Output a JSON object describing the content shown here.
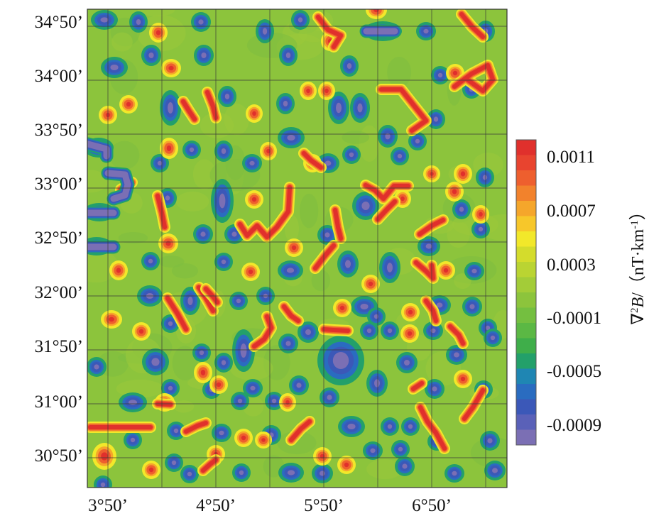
{
  "chart_data": {
    "type": "heatmap",
    "title": "",
    "xlabel": "",
    "ylabel": "",
    "x_ticks": [
      "3°50’",
      "4°50’",
      "5°50’",
      "6°50’"
    ],
    "y_ticks": [
      "34°50’",
      "34°00’",
      "33°50’",
      "33°00’",
      "32°50’",
      "32°00’",
      "31°50’",
      "31°00’",
      "30°50’"
    ],
    "grid": true,
    "colorbar": {
      "label_parts": [
        "∇",
        "2",
        "B",
        "/（nT·km",
        "-1",
        "）"
      ],
      "ticks": [
        "0.0011",
        "0.0007",
        "0.0003",
        "-0.0001",
        "-0.0005",
        "-0.0009"
      ],
      "range": [
        -0.0011,
        0.0013
      ],
      "placement": "right"
    },
    "background_value": -0.0001,
    "anomalies_approx": [
      {
        "lon": 3.95,
        "lat": 34.82,
        "value": -0.0009
      },
      {
        "lon": 6.75,
        "lat": 34.55,
        "value": 0.0011
      },
      {
        "lon": 6.15,
        "lat": 34.35,
        "value": 0.0011
      },
      {
        "lon": 5.55,
        "lat": 31.9,
        "value": -0.0009
      },
      {
        "lon": 4.7,
        "lat": 32.6,
        "value": 0.0009
      },
      {
        "lon": 3.95,
        "lat": 30.6,
        "value": 0.0009
      },
      {
        "lon": 6.35,
        "lat": 32.5,
        "value": 0.0011
      }
    ]
  },
  "colors": {
    "background": "#8cc43c",
    "scale": [
      "#7b6fb4",
      "#5a61b8",
      "#3b58b8",
      "#2a6cc0",
      "#1f86b3",
      "#23a06a",
      "#3fae4a",
      "#5bb844",
      "#74bf40",
      "#8cc43c",
      "#a3cc38",
      "#bad432",
      "#d4dc2c",
      "#f2e82a",
      "#f7c72a",
      "#f5a62b",
      "#f2822c",
      "#ee5f2e",
      "#e8442f",
      "#e0302c"
    ]
  }
}
